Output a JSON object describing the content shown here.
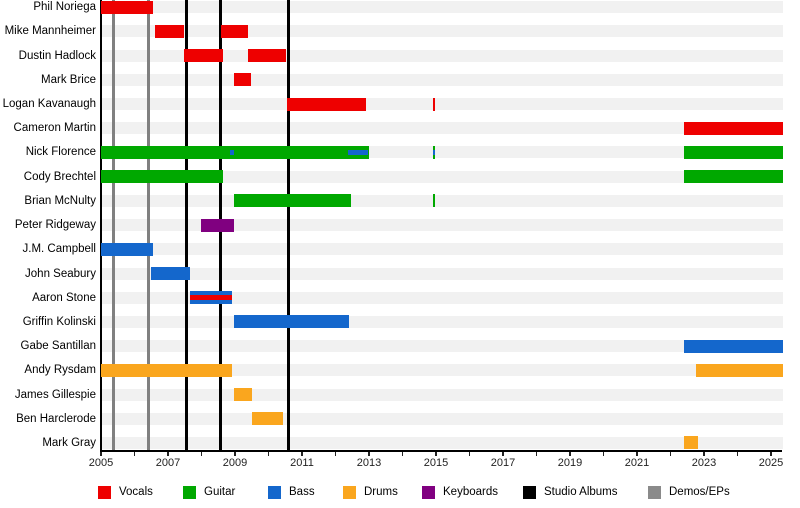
{
  "chart_data": {
    "type": "bar",
    "subtype": "horizontal-gantt-band-member-timeline",
    "title": "",
    "xlabel": "",
    "ylabel": "",
    "grid": false,
    "x_axis": {
      "min": 2005,
      "max": 2025.5,
      "major_tick_labels": [
        "2005",
        "2007",
        "2009",
        "2011",
        "2013",
        "2015",
        "2017",
        "2019",
        "2021",
        "2023",
        "2025"
      ],
      "major_tick_years": [
        2005,
        2007,
        2009,
        2011,
        2013,
        2015,
        2017,
        2019,
        2021,
        2023,
        2025
      ],
      "minor_tick_every_years": 1
    },
    "legend": {
      "position": "bottom",
      "items": [
        {
          "key": "vocals",
          "label": "Vocals",
          "color": "#ee0000"
        },
        {
          "key": "guitar",
          "label": "Guitar",
          "color": "#00a800"
        },
        {
          "key": "bass",
          "label": "Bass",
          "color": "#1467cc"
        },
        {
          "key": "drums",
          "label": "Drums",
          "color": "#faa61e"
        },
        {
          "key": "keyboards",
          "label": "Keyboards",
          "color": "#800080"
        },
        {
          "key": "albums",
          "label": "Studio Albums",
          "color": "#000000"
        },
        {
          "key": "demos",
          "label": "Demos/EPs",
          "color": "#8a8a8a"
        }
      ]
    },
    "vertical_lines": {
      "studio_albums_years": [
        2007.56,
        2008.57,
        2010.6
      ],
      "demos_eps_years": [
        2005.36,
        2006.42
      ]
    },
    "members": [
      {
        "name": "Phil Noriega",
        "segments": [
          {
            "start": 2005.0,
            "end": 2006.55,
            "role": "vocals",
            "layer": "full"
          }
        ]
      },
      {
        "name": "Mike Mannheimer",
        "segments": [
          {
            "start": 2006.6,
            "end": 2007.48,
            "role": "vocals",
            "layer": "full"
          },
          {
            "start": 2008.58,
            "end": 2009.4,
            "role": "vocals",
            "layer": "full"
          }
        ]
      },
      {
        "name": "Dustin Hadlock",
        "segments": [
          {
            "start": 2007.48,
            "end": 2008.65,
            "role": "vocals",
            "layer": "full"
          },
          {
            "start": 2009.4,
            "end": 2010.52,
            "role": "vocals",
            "layer": "full"
          }
        ]
      },
      {
        "name": "Mark Brice",
        "segments": [
          {
            "start": 2008.97,
            "end": 2009.48,
            "role": "vocals",
            "layer": "full"
          }
        ]
      },
      {
        "name": "Logan Kavanaugh",
        "segments": [
          {
            "start": 2010.56,
            "end": 2012.9,
            "role": "vocals",
            "layer": "full"
          },
          {
            "start": 2014.9,
            "end": 2014.98,
            "role": "vocals",
            "layer": "full"
          }
        ]
      },
      {
        "name": "Cameron Martin",
        "segments": [
          {
            "start": 2022.4,
            "end": 2025.35,
            "role": "vocals",
            "layer": "full"
          }
        ]
      },
      {
        "name": "Nick Florence",
        "segments": [
          {
            "start": 2005.0,
            "end": 2013.0,
            "role": "guitar",
            "layer": "full"
          },
          {
            "start": 2008.85,
            "end": 2008.98,
            "role": "bass",
            "layer": "inner"
          },
          {
            "start": 2012.38,
            "end": 2012.97,
            "role": "bass",
            "layer": "inner"
          },
          {
            "start": 2014.9,
            "end": 2014.98,
            "role": "guitar",
            "layer": "full"
          },
          {
            "start": 2014.9,
            "end": 2014.98,
            "role": "bass",
            "layer": "inner"
          },
          {
            "start": 2022.4,
            "end": 2025.35,
            "role": "guitar",
            "layer": "full"
          }
        ]
      },
      {
        "name": "Cody Brechtel",
        "segments": [
          {
            "start": 2005.0,
            "end": 2008.65,
            "role": "guitar",
            "layer": "full"
          },
          {
            "start": 2022.4,
            "end": 2025.35,
            "role": "guitar",
            "layer": "full"
          }
        ]
      },
      {
        "name": "Brian McNulty",
        "segments": [
          {
            "start": 2008.97,
            "end": 2012.45,
            "role": "guitar",
            "layer": "full"
          },
          {
            "start": 2014.9,
            "end": 2014.98,
            "role": "guitar",
            "layer": "full"
          }
        ]
      },
      {
        "name": "Peter Ridgeway",
        "segments": [
          {
            "start": 2007.98,
            "end": 2008.97,
            "role": "keyboards",
            "layer": "full"
          }
        ]
      },
      {
        "name": "J.M. Campbell",
        "segments": [
          {
            "start": 2005.0,
            "end": 2006.55,
            "role": "bass",
            "layer": "full"
          }
        ]
      },
      {
        "name": "John Seabury",
        "segments": [
          {
            "start": 2006.5,
            "end": 2007.66,
            "role": "bass",
            "layer": "full"
          }
        ]
      },
      {
        "name": "Aaron Stone",
        "segments": [
          {
            "start": 2007.66,
            "end": 2008.9,
            "role": "bass",
            "layer": "full"
          },
          {
            "start": 2007.66,
            "end": 2008.9,
            "role": "vocals",
            "layer": "inner"
          }
        ]
      },
      {
        "name": "Griffin Kolinski",
        "segments": [
          {
            "start": 2008.97,
            "end": 2012.4,
            "role": "bass",
            "layer": "full"
          }
        ]
      },
      {
        "name": "Gabe Santillan",
        "segments": [
          {
            "start": 2022.4,
            "end": 2025.35,
            "role": "bass",
            "layer": "full"
          }
        ]
      },
      {
        "name": "Andy Rysdam",
        "segments": [
          {
            "start": 2005.0,
            "end": 2008.9,
            "role": "drums",
            "layer": "full"
          },
          {
            "start": 2022.75,
            "end": 2025.35,
            "role": "drums",
            "layer": "full"
          }
        ]
      },
      {
        "name": "James Gillespie",
        "segments": [
          {
            "start": 2008.97,
            "end": 2009.5,
            "role": "drums",
            "layer": "full"
          }
        ]
      },
      {
        "name": "Ben Harclerode",
        "segments": [
          {
            "start": 2009.5,
            "end": 2010.43,
            "role": "drums",
            "layer": "full"
          }
        ]
      },
      {
        "name": "Mark Gray",
        "segments": [
          {
            "start": 2022.4,
            "end": 2022.82,
            "role": "drums",
            "layer": "full"
          }
        ]
      }
    ],
    "styles": {
      "row_stripe_color": "#f1f1f1",
      "studio_album_line_color": "#000000",
      "demo_ep_line_color": "#808080"
    }
  }
}
